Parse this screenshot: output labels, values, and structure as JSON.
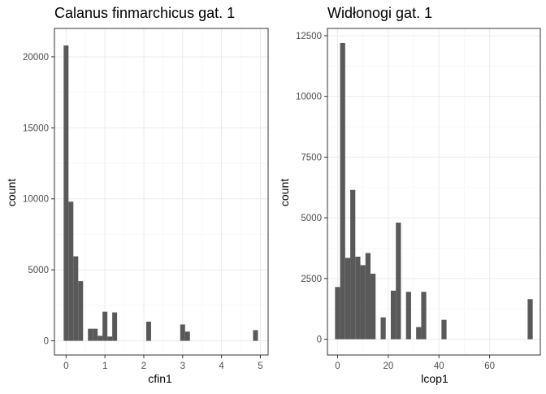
{
  "chart_data": [
    {
      "type": "bar",
      "title": "Calanus finmarchicus gat. 1",
      "xlabel": "cfin1",
      "ylabel": "count",
      "xlim": [
        -0.3,
        5.2
      ],
      "ylim": [
        -1000,
        22000
      ],
      "xticks": [
        0,
        1,
        2,
        3,
        4,
        5
      ],
      "xtick_labels": [
        "0",
        "1",
        "2",
        "3",
        "4",
        "5"
      ],
      "yticks": [
        0,
        5000,
        10000,
        15000,
        20000
      ],
      "ytick_labels": [
        "0",
        "5000",
        "10000",
        "15000",
        "20000"
      ],
      "bin_width": 0.125,
      "grid": true,
      "bar_color": "#595959",
      "bins": [
        {
          "x": 0.0,
          "count": 20800
        },
        {
          "x": 0.125,
          "count": 9800
        },
        {
          "x": 0.25,
          "count": 5950
        },
        {
          "x": 0.375,
          "count": 4200
        },
        {
          "x": 0.625,
          "count": 850
        },
        {
          "x": 0.75,
          "count": 850
        },
        {
          "x": 0.875,
          "count": 350
        },
        {
          "x": 1.0,
          "count": 2050
        },
        {
          "x": 1.125,
          "count": 300
        },
        {
          "x": 1.25,
          "count": 2000
        },
        {
          "x": 2.125,
          "count": 1350
        },
        {
          "x": 3.0,
          "count": 1150
        },
        {
          "x": 3.125,
          "count": 650
        },
        {
          "x": 4.875,
          "count": 750
        }
      ]
    },
    {
      "type": "bar",
      "title": "Widłonogi gat. 1",
      "xlabel": "lcop1",
      "ylabel": "count",
      "xlim": [
        -4,
        80
      ],
      "ylim": [
        -650,
        12800
      ],
      "xticks": [
        0,
        20,
        40,
        60
      ],
      "xtick_labels": [
        "0",
        "20",
        "40",
        "60"
      ],
      "yticks": [
        0,
        2500,
        5000,
        7500,
        10000,
        12500
      ],
      "ytick_labels": [
        "0",
        "2500",
        "5000",
        "7500",
        "10000",
        "12500"
      ],
      "bin_width": 2,
      "grid": true,
      "bar_color": "#595959",
      "bins": [
        {
          "x": 0,
          "count": 2150
        },
        {
          "x": 2,
          "count": 12200
        },
        {
          "x": 4,
          "count": 3350
        },
        {
          "x": 6,
          "count": 6150
        },
        {
          "x": 8,
          "count": 3400
        },
        {
          "x": 10,
          "count": 3050
        },
        {
          "x": 12,
          "count": 3550
        },
        {
          "x": 14,
          "count": 2700
        },
        {
          "x": 18,
          "count": 900
        },
        {
          "x": 22,
          "count": 2000
        },
        {
          "x": 24,
          "count": 4800
        },
        {
          "x": 28,
          "count": 1950
        },
        {
          "x": 32,
          "count": 500
        },
        {
          "x": 34,
          "count": 1950
        },
        {
          "x": 42,
          "count": 800
        },
        {
          "x": 76,
          "count": 1650
        }
      ]
    }
  ]
}
